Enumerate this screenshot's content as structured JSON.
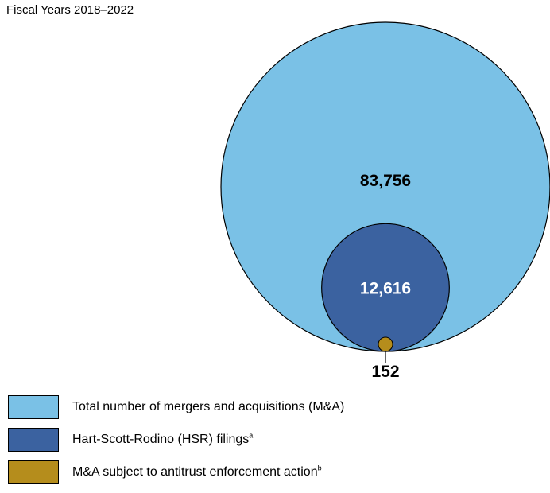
{
  "chart_data": {
    "type": "nested-bubble",
    "subtitle": "Fiscal Years 2018–2022",
    "items": [
      {
        "key": "total",
        "label": "Total number of mergers and acquisitions (M&A)",
        "footnote": "",
        "value": 83756,
        "display": "83,756",
        "color": "#7ac1e6",
        "label_color": "#000000"
      },
      {
        "key": "hsr",
        "label": "Hart-Scott-Rodino (HSR) filings",
        "footnote": "a",
        "value": 12616,
        "display": "12,616",
        "color": "#3b62a0",
        "label_color": "#ffffff"
      },
      {
        "key": "enforcement",
        "label": "M&A subject to antitrust enforcement action",
        "footnote": "b",
        "value": 152,
        "display": "152",
        "color": "#b58d1c",
        "label_color": "#000000"
      }
    ]
  }
}
